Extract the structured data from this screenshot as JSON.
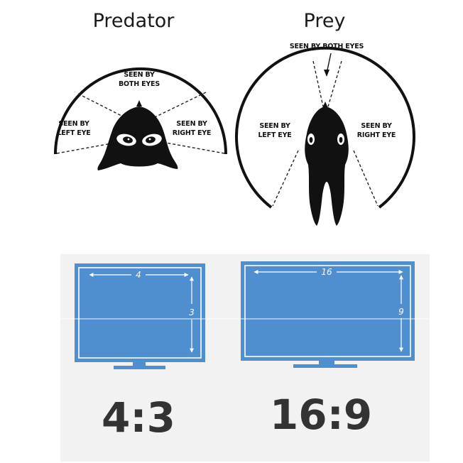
{
  "predator": {
    "title": "Predator",
    "labels": {
      "both_line1": "SEEN BY",
      "both_line2": "BOTH EYES",
      "left_line1": "SEEN BY",
      "left_line2": "LEFT EYE",
      "right_line1": "SEEN BY",
      "right_line2": "RIGHT EYE"
    }
  },
  "prey": {
    "title": "Prey",
    "labels": {
      "both": "SEEN BY BOTH EYES",
      "left_line1": "SEEN BY",
      "left_line2": "LEFT EYE",
      "right_line1": "SEEN BY",
      "right_line2": "RIGHT EYE"
    }
  },
  "screens": [
    {
      "ratio": "4:3",
      "width_label": "4",
      "height_label": "3"
    },
    {
      "ratio": "16:9",
      "width_label": "16",
      "height_label": "9"
    }
  ],
  "colors": {
    "screen": "#4f8fd0",
    "ratio_text": "#333333",
    "panel_bg": "#f2f2f2"
  }
}
